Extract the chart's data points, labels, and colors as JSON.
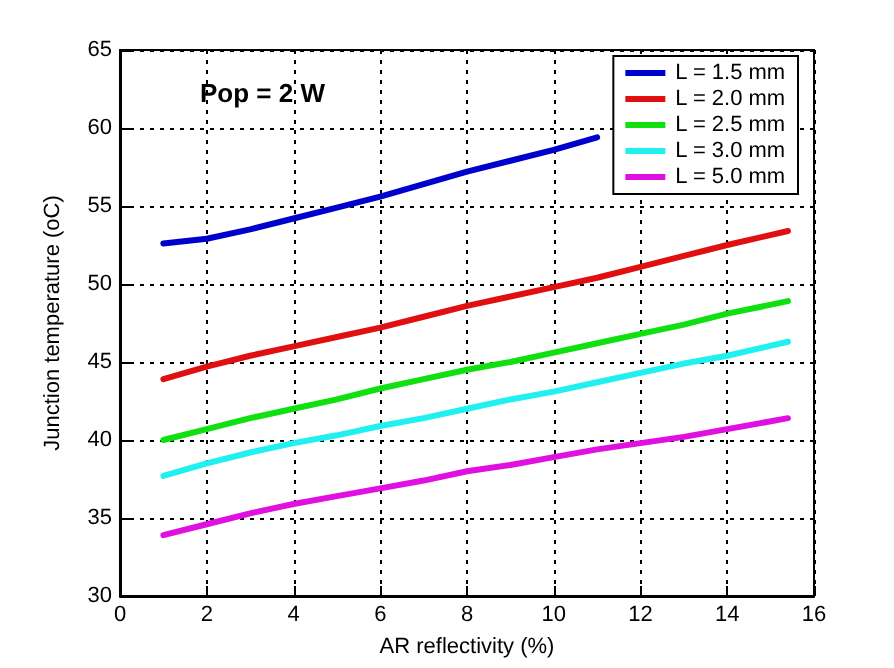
{
  "chart_data": {
    "type": "line",
    "xlabel": "AR reflectivity (%)",
    "ylabel": "Junction temperature (oC)",
    "annotations": [
      "Pop = 2 W"
    ],
    "x": [
      1,
      2,
      3,
      4,
      5,
      6,
      7,
      8,
      9,
      10,
      11,
      12,
      13,
      14,
      15.4
    ],
    "series": [
      {
        "name": "L = 1.5 mm",
        "color": "#0000cc",
        "x": [
          1,
          2,
          3,
          4,
          5,
          6,
          7,
          8,
          9,
          10,
          11
        ],
        "values": [
          52.6,
          52.9,
          53.5,
          54.2,
          54.9,
          55.6,
          56.4,
          57.2,
          57.9,
          58.6,
          59.4
        ]
      },
      {
        "name": "L = 2.0 mm",
        "color": "#e01010",
        "values": [
          43.9,
          44.7,
          45.4,
          46.0,
          46.6,
          47.2,
          47.9,
          48.6,
          49.2,
          49.8,
          50.4,
          51.1,
          51.8,
          52.5,
          53.4
        ]
      },
      {
        "name": "L = 2.5 mm",
        "color": "#10e010",
        "values": [
          40.0,
          40.7,
          41.4,
          42.0,
          42.6,
          43.3,
          43.9,
          44.5,
          45.0,
          45.6,
          46.2,
          46.8,
          47.4,
          48.1,
          48.9
        ]
      },
      {
        "name": "L = 3.0 mm",
        "color": "#20f0f0",
        "values": [
          37.7,
          38.5,
          39.2,
          39.8,
          40.3,
          40.9,
          41.4,
          42.0,
          42.6,
          43.1,
          43.7,
          44.3,
          44.9,
          45.4,
          46.3
        ]
      },
      {
        "name": "L = 5.0 mm",
        "color": "#e010e0",
        "values": [
          33.9,
          34.6,
          35.3,
          35.9,
          36.4,
          36.9,
          37.4,
          38.0,
          38.4,
          38.9,
          39.4,
          39.8,
          40.2,
          40.7,
          41.4
        ]
      }
    ],
    "xlim": [
      0,
      16
    ],
    "xticks": [
      0,
      2,
      4,
      6,
      8,
      10,
      12,
      14,
      16
    ],
    "ylim": [
      30,
      65
    ],
    "yticks": [
      30,
      35,
      40,
      45,
      50,
      55,
      60,
      65
    ],
    "grid": true,
    "legend": "top right",
    "marker": "none",
    "line_style": "solid"
  }
}
